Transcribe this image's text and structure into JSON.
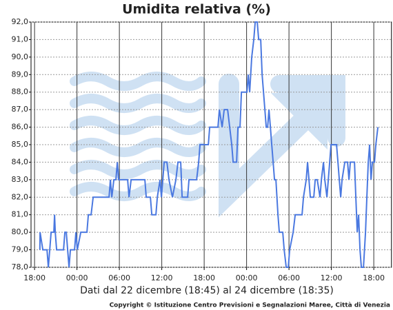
{
  "chart_data": {
    "type": "line",
    "title": "Umidita relativa (%)",
    "x_label": "Dati dal 22 dicembre (18:45) al 24 dicembre (18:35)",
    "copyright": "Copyright © Istituzione Centro Previsioni e Segnalazioni Maree, Città di Venezia",
    "xlim": [
      -0.5,
      50.5
    ],
    "xticks": [
      {
        "value": 0,
        "label": "18:00"
      },
      {
        "value": 6,
        "label": "00:00"
      },
      {
        "value": 12,
        "label": "06:00"
      },
      {
        "value": 18,
        "label": "12:00"
      },
      {
        "value": 24,
        "label": "18:00"
      },
      {
        "value": 30,
        "label": "00:00"
      },
      {
        "value": 36,
        "label": "06:00"
      },
      {
        "value": 42,
        "label": "12:00"
      },
      {
        "value": 48,
        "label": "18:00"
      }
    ],
    "ylim": [
      78,
      92
    ],
    "yticks": [
      {
        "value": 78,
        "label": "78,0"
      },
      {
        "value": 79,
        "label": "79,0"
      },
      {
        "value": 80,
        "label": "80,0"
      },
      {
        "value": 81,
        "label": "81,0"
      },
      {
        "value": 82,
        "label": "82,0"
      },
      {
        "value": 83,
        "label": "83,0"
      },
      {
        "value": 84,
        "label": "84,0"
      },
      {
        "value": 85,
        "label": "85,0"
      },
      {
        "value": 86,
        "label": "86,0"
      },
      {
        "value": 87,
        "label": "87,0"
      },
      {
        "value": 88,
        "label": "88,0"
      },
      {
        "value": 89,
        "label": "89,0"
      },
      {
        "value": 90,
        "label": "90,0"
      },
      {
        "value": 91,
        "label": "91,0"
      },
      {
        "value": 92,
        "label": "92,0"
      }
    ],
    "grid": true,
    "color": "#4a78e0",
    "x": [
      0.75,
      0.78,
      1.17,
      1.46,
      1.76,
      1.95,
      2.15,
      2.34,
      2.73,
      2.83,
      2.93,
      3.12,
      4.1,
      4.29,
      4.49,
      4.68,
      4.88,
      5.07,
      5.66,
      5.85,
      6.05,
      6.54,
      7.02,
      7.41,
      7.61,
      8,
      8.29,
      8.78,
      10.24,
      10.54,
      10.73,
      10.93,
      11.22,
      11.51,
      11.71,
      11.9,
      13.17,
      13.37,
      13.66,
      15.61,
      15.8,
      16.39,
      16.59,
      17.17,
      17.37,
      17.76,
      17.95,
      18.34,
      18.73,
      19.02,
      19.51,
      20,
      20.29,
      20.68,
      20.88,
      21.66,
      21.85,
      22.93,
      23.22,
      23.41,
      24.59,
      24.78,
      25.95,
      26.15,
      26.54,
      26.83,
      27.32,
      27.61,
      27.9,
      28.1,
      28.59,
      28.78,
      29.07,
      29.27,
      30.05,
      30.24,
      30.44,
      30.73,
      31.02,
      31.22,
      31.51,
      31.71,
      32,
      32.2,
      32.59,
      32.78,
      32.98,
      33.17,
      33.37,
      33.56,
      33.76,
      33.95,
      34.15,
      34.44,
      34.63,
      35.12,
      35.32,
      35.61,
      35.9,
      36.1,
      36.59,
      36.88,
      37.27,
      37.85,
      38.05,
      38.44,
      38.63,
      38.83,
      39.02,
      39.51,
      39.71,
      40,
      40.39,
      40.59,
      40.88,
      41.07,
      41.37,
      41.76,
      41.95,
      42.73,
      42.93,
      43.12,
      43.32,
      43.51,
      43.9,
      44.29,
      44.49,
      44.68,
      45.27,
      45.46,
      45.66,
      45.85,
      46.05,
      46.24,
      46.54,
      46.83,
      47.02,
      47.22,
      47.41,
      47.61,
      47.8,
      48.1,
      48.29,
      48.58
    ],
    "values": [
      79,
      80,
      79,
      79,
      79,
      78,
      79,
      80,
      80,
      81,
      80,
      79,
      79,
      80,
      80,
      79,
      78,
      79,
      79,
      80,
      79,
      80,
      80,
      80,
      81,
      81,
      82,
      82,
      82,
      82,
      83,
      82,
      83,
      83,
      84,
      83,
      83,
      82,
      83,
      83,
      82,
      82,
      81,
      81,
      82,
      83,
      82,
      84,
      84,
      83,
      82,
      83,
      84,
      84,
      82,
      82,
      83,
      83,
      84,
      85,
      85,
      86,
      86,
      87,
      86,
      87,
      87,
      86,
      85,
      84,
      84,
      86,
      86,
      88,
      88,
      89,
      88,
      90,
      91,
      92,
      92,
      91,
      91,
      89,
      87,
      86,
      86,
      87,
      86,
      85,
      84,
      83,
      83,
      81,
      80,
      80,
      79,
      78,
      78,
      79,
      80,
      81,
      81,
      81,
      82,
      83,
      84,
      83,
      82,
      82,
      83,
      83,
      82,
      83,
      84,
      83,
      82,
      84,
      85,
      85,
      84,
      83,
      82,
      83,
      84,
      84,
      83,
      84,
      84,
      82,
      80,
      81,
      79,
      78,
      78,
      80,
      82,
      84,
      85,
      83,
      84,
      84,
      85,
      86
    ]
  }
}
